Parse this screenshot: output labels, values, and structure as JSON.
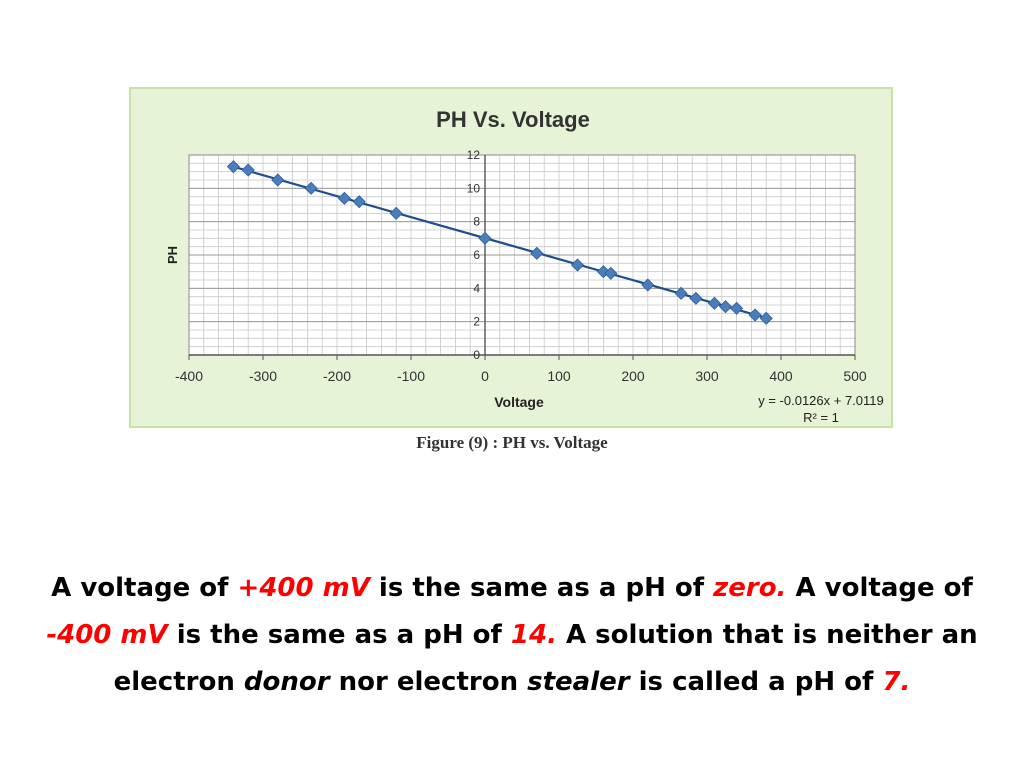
{
  "chart_data": {
    "type": "scatter",
    "title": "PH Vs. Voltage",
    "xlabel": "Voltage",
    "ylabel": "PH",
    "xlim": [
      -400,
      500
    ],
    "ylim": [
      0,
      12
    ],
    "xticks": [
      "-400",
      "-300",
      "-200",
      "-100",
      "0",
      "100",
      "200",
      "300",
      "400",
      "500"
    ],
    "yticks": [
      "0",
      "2",
      "4",
      "6",
      "8",
      "10",
      "12"
    ],
    "grid": true,
    "series": [
      {
        "x": [
          -340,
          -320,
          -280,
          -235,
          -190,
          -170,
          -120,
          0,
          70,
          125,
          160,
          170,
          220,
          265,
          285,
          310,
          325,
          340,
          365,
          380
        ],
        "y": [
          11.3,
          11.1,
          10.5,
          10.0,
          9.4,
          9.2,
          8.5,
          7.0,
          6.1,
          5.4,
          5.0,
          4.9,
          4.2,
          3.7,
          3.4,
          3.1,
          2.9,
          2.8,
          2.4,
          2.2
        ],
        "color": "#4a7ebb"
      }
    ],
    "trendline": {
      "slope": -0.0126,
      "intercept": 7.0119,
      "color": "#1f4e8c"
    },
    "equation": "y = -0.0126x + 7.0119",
    "r_squared": "R² = 1"
  },
  "caption": "Figure (9)  : PH vs. Voltage",
  "text": {
    "p1": "A voltage of ",
    "v1": "+400 mV",
    "p2": " is the same as a pH of ",
    "v2": "zero.",
    "p3": " A voltage of ",
    "v3": "-400 mV",
    "p4": " is the same as a pH of ",
    "v4": "14.",
    "p5": " A solution that is neither an electron ",
    "v5": "donor",
    "p6": " nor electron ",
    "v6": "stealer",
    "p7": " is called a pH of ",
    "v7": "7."
  }
}
